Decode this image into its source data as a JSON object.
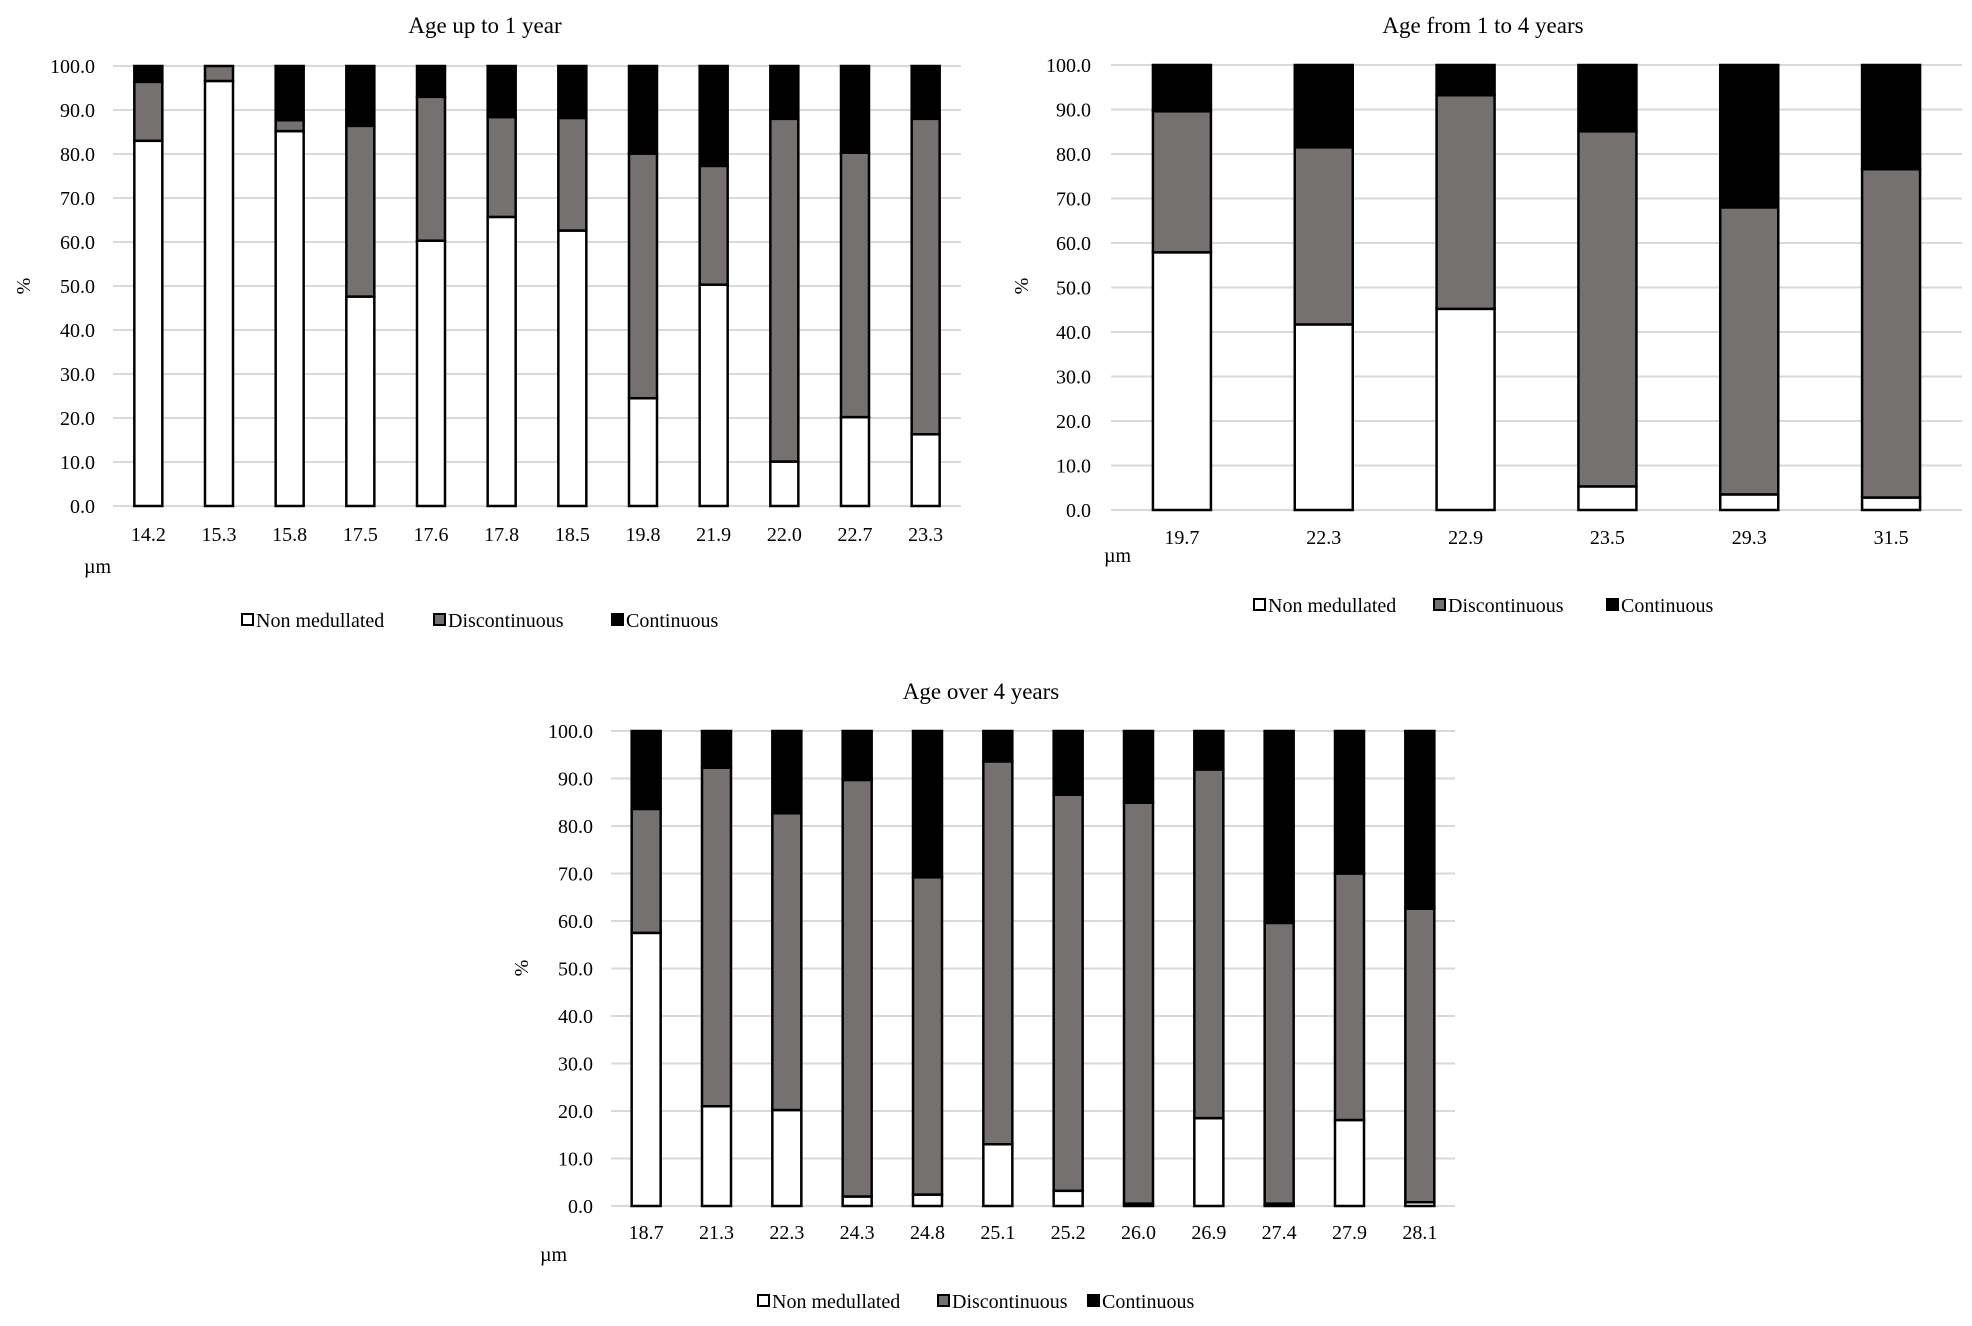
{
  "chart_data": [
    {
      "type": "bar",
      "stacked": true,
      "title": "Age up to 1 year",
      "xlabel": "µm",
      "ylabel": "%",
      "ylim": [
        0,
        100
      ],
      "yticks": [
        "0.0",
        "10.0",
        "20.0",
        "30.0",
        "40.0",
        "50.0",
        "60.0",
        "70.0",
        "80.0",
        "90.0",
        "100.0"
      ],
      "grid": true,
      "legend_position": "bottom",
      "categories": [
        "14.2",
        "15.3",
        "15.8",
        "17.5",
        "17.6",
        "17.8",
        "18.5",
        "19.8",
        "21.9",
        "22.0",
        "22.7",
        "23.3"
      ],
      "series": [
        {
          "name": "Non medullated",
          "color": "#ffffff",
          "values": [
            83.0,
            96.6,
            85.2,
            47.6,
            60.3,
            65.7,
            62.6,
            24.5,
            50.3,
            10.1,
            20.2,
            16.3
          ]
        },
        {
          "name": "Discontinuous",
          "color": "#767171",
          "values": [
            13.4,
            3.4,
            2.5,
            38.8,
            32.7,
            22.7,
            25.6,
            55.6,
            27.0,
            77.9,
            60.1,
            71.7
          ]
        },
        {
          "name": "Continuous",
          "color": "#000000",
          "values": [
            3.6,
            0.0,
            12.3,
            13.6,
            7.0,
            11.6,
            11.8,
            19.9,
            22.7,
            12.0,
            19.7,
            12.0
          ]
        }
      ]
    },
    {
      "type": "bar",
      "stacked": true,
      "title": "Age from 1 to 4 years",
      "xlabel": "µm",
      "ylabel": "%",
      "ylim": [
        0,
        100
      ],
      "yticks": [
        "0.0",
        "10.0",
        "20.0",
        "30.0",
        "40.0",
        "50.0",
        "60.0",
        "70.0",
        "80.0",
        "90.0",
        "100.0"
      ],
      "grid": true,
      "legend_position": "bottom",
      "categories": [
        "19.7",
        "22.3",
        "22.9",
        "23.5",
        "29.3",
        "31.5"
      ],
      "series": [
        {
          "name": "Non medullated",
          "color": "#ffffff",
          "values": [
            57.9,
            41.7,
            45.2,
            5.3,
            3.5,
            2.8
          ]
        },
        {
          "name": "Discontinuous",
          "color": "#767171",
          "values": [
            31.7,
            39.8,
            48.0,
            79.8,
            64.5,
            73.8
          ]
        },
        {
          "name": "Continuous",
          "color": "#000000",
          "values": [
            10.4,
            18.5,
            6.8,
            14.9,
            32.0,
            23.4
          ]
        }
      ]
    },
    {
      "type": "bar",
      "stacked": true,
      "title": "Age over 4 years",
      "xlabel": "µm",
      "ylabel": "%",
      "ylim": [
        0,
        100
      ],
      "yticks": [
        "0.0",
        "10.0",
        "20.0",
        "30.0",
        "40.0",
        "50.0",
        "60.0",
        "70.0",
        "80.0",
        "90.0",
        "100.0"
      ],
      "grid": true,
      "legend_position": "bottom",
      "categories": [
        "18.7",
        "21.3",
        "22.3",
        "24.3",
        "24.8",
        "25.1",
        "25.2",
        "26.0",
        "26.9",
        "27.4",
        "27.9",
        "28.1"
      ],
      "series": [
        {
          "name": "Non medullated",
          "color": "#ffffff",
          "values": [
            57.5,
            21.0,
            20.2,
            2.0,
            2.4,
            13.0,
            3.2,
            0.5,
            18.5,
            0.5,
            18.1,
            0.8
          ]
        },
        {
          "name": "Discontinuous",
          "color": "#767171",
          "values": [
            26.1,
            71.3,
            62.5,
            87.7,
            66.8,
            80.6,
            83.4,
            84.4,
            73.4,
            59.1,
            51.9,
            61.8
          ]
        },
        {
          "name": "Continuous",
          "color": "#000000",
          "values": [
            16.4,
            7.7,
            17.3,
            10.3,
            30.8,
            6.4,
            13.4,
            15.1,
            8.1,
            40.4,
            30.0,
            37.4
          ]
        }
      ]
    }
  ]
}
